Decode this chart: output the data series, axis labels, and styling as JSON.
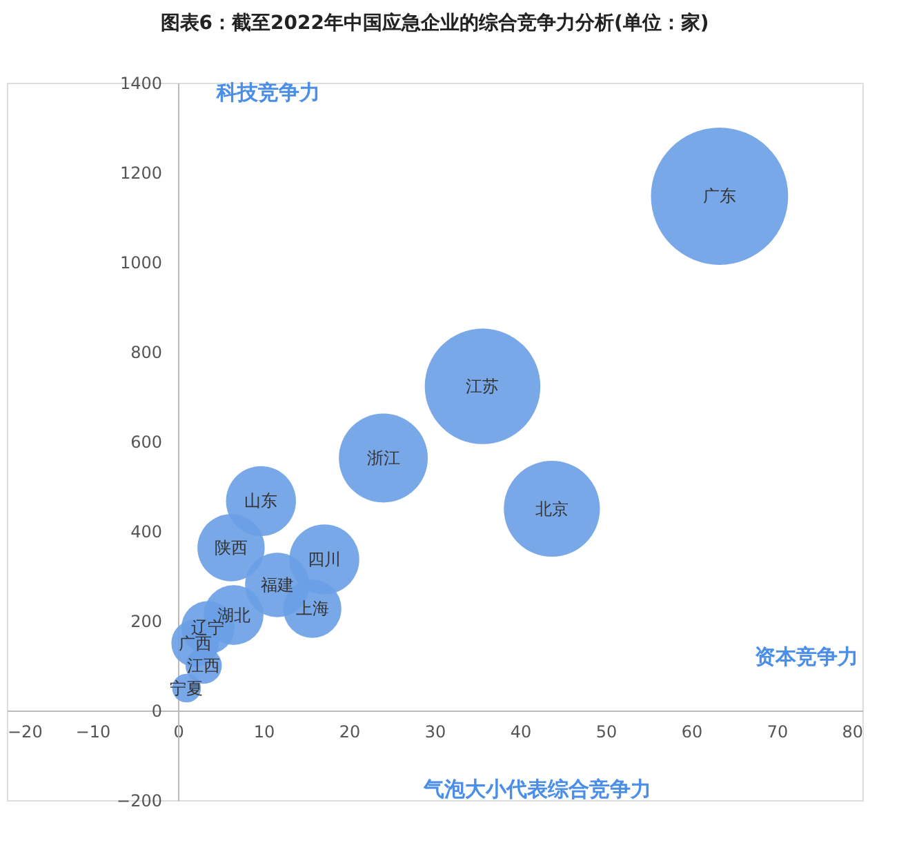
{
  "chart_data": {
    "type": "bubble",
    "title": "图表6：截至2022年中国应急企业的综合竞争力分析(单位：家)",
    "series": [
      {
        "name": "广东",
        "color": "#6a9fe6",
        "x": [
          63.3
        ],
        "values": [
          1147
        ],
        "sizes": [
          1
        ]
      },
      {
        "name": "江苏",
        "color": "#6a9fe6",
        "x": [
          35.6
        ],
        "values": [
          723
        ],
        "sizes": [
          0.71
        ]
      },
      {
        "name": "浙江",
        "color": "#6a9fe6",
        "x": [
          24
        ],
        "values": [
          563
        ],
        "sizes": [
          0.42
        ]
      },
      {
        "name": "北京",
        "color": "#6a9fe6",
        "x": [
          43.7
        ],
        "values": [
          450
        ],
        "sizes": [
          0.49
        ]
      },
      {
        "name": "山东",
        "color": "#6a9fe6",
        "x": [
          9.7
        ],
        "values": [
          467
        ],
        "sizes": [
          0.26
        ]
      },
      {
        "name": "陕西",
        "color": "#6a9fe6",
        "x": [
          6.2
        ],
        "values": [
          363
        ],
        "sizes": [
          0.24
        ]
      },
      {
        "name": "四川",
        "color": "#6a9fe6",
        "x": [
          17.1
        ],
        "values": [
          337
        ],
        "sizes": [
          0.26
        ]
      },
      {
        "name": "福建",
        "color": "#6a9fe6",
        "x": [
          11.6
        ],
        "values": [
          280
        ],
        "sizes": [
          0.22
        ]
      },
      {
        "name": "上海",
        "color": "#6a9fe6",
        "x": [
          15.7
        ],
        "values": [
          227
        ],
        "sizes": [
          0.18
        ]
      },
      {
        "name": "湖北",
        "color": "#6a9fe6",
        "x": [
          6.5
        ],
        "values": [
          213
        ],
        "sizes": [
          0.19
        ]
      },
      {
        "name": "辽宁",
        "color": "#6a9fe6",
        "x": [
          3.5
        ],
        "values": [
          185
        ],
        "sizes": [
          0.15
        ]
      },
      {
        "name": "广西",
        "color": "#6a9fe6",
        "x": [
          2
        ],
        "values": [
          150
        ],
        "sizes": [
          0.12
        ]
      },
      {
        "name": "江西",
        "color": "#6a9fe6",
        "x": [
          3
        ],
        "values": [
          100
        ],
        "sizes": [
          0.07
        ]
      },
      {
        "name": "宁夏",
        "color": "#6a9fe6",
        "x": [
          1
        ],
        "values": [
          50
        ],
        "sizes": [
          0.044
        ]
      }
    ],
    "xlim": [
      -20,
      80
    ],
    "xticks": [
      -20,
      -10,
      0,
      10,
      20,
      30,
      40,
      50,
      60,
      70,
      80
    ],
    "ylim": [
      -200,
      1400
    ],
    "yticks": [
      -200,
      0,
      200,
      400,
      600,
      800,
      1000,
      1200,
      1400
    ],
    "annotations": [
      "科技竞争力",
      "资本竞争力",
      "气泡大小代表综合竞争力"
    ],
    "grid": false,
    "legend": false
  }
}
